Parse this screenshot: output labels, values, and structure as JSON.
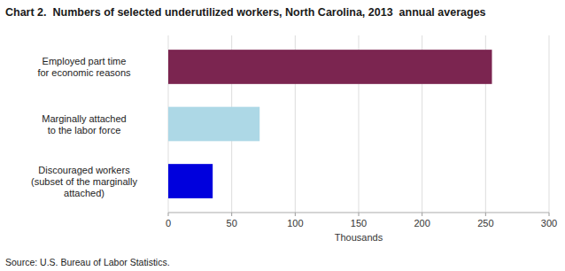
{
  "chart_data": {
    "type": "bar",
    "orientation": "horizontal",
    "title": "Chart 2.  Numbers of selected underutilized workers, North Carolina, 2013  annual averages",
    "categories": [
      "Discouraged workers\n(subset of the marginally\nattached)",
      "Marginally attached\nto the labor force",
      "Employed part time\nfor economic reasons"
    ],
    "values": [
      35,
      72,
      255
    ],
    "colors": [
      "#0000dd",
      "#add8e6",
      "#7b2550"
    ],
    "xlim": [
      0,
      300
    ],
    "xticks": [
      0,
      50,
      100,
      150,
      200,
      250,
      300
    ],
    "xlabel": "Thousands",
    "annotations": [
      "Source: U.S. Bureau of Labor Statistics."
    ],
    "grid": true
  }
}
